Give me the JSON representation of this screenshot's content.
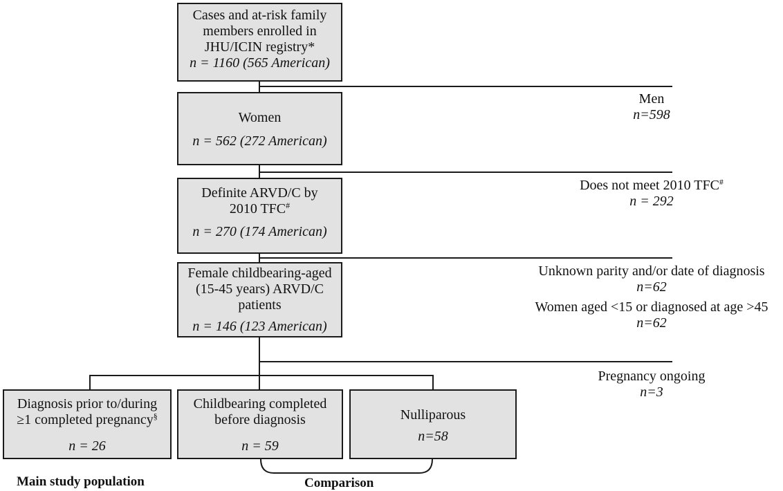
{
  "boxes": {
    "registry": {
      "lines": [
        "Cases and at-risk family",
        "members enrolled in",
        "JHU/ICIN registry*"
      ],
      "n": "n = 1160 (565 American)"
    },
    "women": {
      "title": "Women",
      "n": "n = 562 (272 American)"
    },
    "definite": {
      "line1": "Definite ARVD/C by",
      "line2": "2010 TFC",
      "line2_sup": "#",
      "n": "n = 270 (174 American)"
    },
    "female": {
      "lines": [
        "Female childbearing-aged",
        "(15-45 years) ARVD/C",
        "patients"
      ],
      "n": "n = 146 (123 American)"
    },
    "diagnosis": {
      "line1": "Diagnosis prior to/during",
      "line2": "≥1  completed pregnancy",
      "line2_sup": "§",
      "n": "n = 26"
    },
    "childbearing": {
      "lines": [
        "Childbearing completed",
        "before diagnosis"
      ],
      "n": "n = 59"
    },
    "nulliparous": {
      "title": "Nulliparous",
      "n": "n=58"
    }
  },
  "exclusions": {
    "men": {
      "label": "Men",
      "n": "n=598"
    },
    "tfc": {
      "label": "Does not meet 2010 TFC",
      "label_sup": "#",
      "n": "n = 292"
    },
    "unknown": {
      "label": "Unknown parity and/or date of diagnosis",
      "n": "n=62"
    },
    "aged": {
      "label": "Women aged <15 or diagnosed at age >45",
      "n": "n=62"
    },
    "ongoing": {
      "label": "Pregnancy ongoing",
      "n": "n=3"
    }
  },
  "labels": {
    "main": "Main study population",
    "comparison": "Comparison"
  }
}
